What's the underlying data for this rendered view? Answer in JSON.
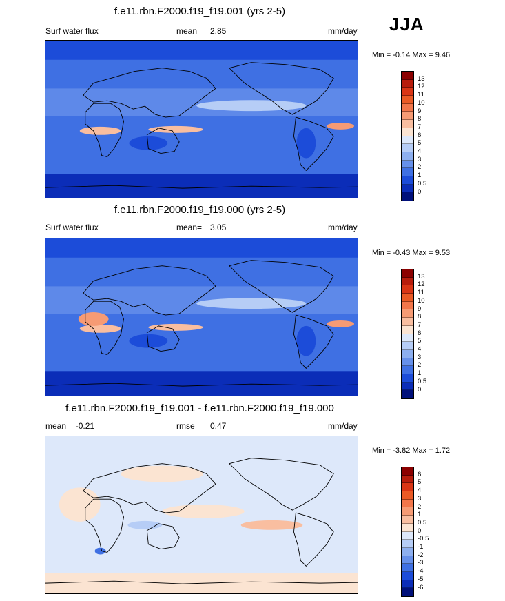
{
  "season": "JJA",
  "panels": [
    {
      "title": "f.e11.rbn.F2000.f19_f19.001 (yrs 2-5)",
      "left_label": "Surf water flux",
      "mid_label": "mean=",
      "mid_value": "2.85",
      "units": "mm/day",
      "minmax": "Min =  -0.14 Max =   9.46",
      "colorbar_ticks": [
        "13",
        "12",
        "11",
        "10",
        "9",
        "8",
        "7",
        "6",
        "5",
        "4",
        "3",
        "2",
        "1",
        "0.5",
        "0"
      ],
      "colorbar_colors": [
        "#8b0000",
        "#b71c0c",
        "#d93515",
        "#ea5a25",
        "#f2764a",
        "#f69b74",
        "#f9bea0",
        "#fbe4d2",
        "#dde8fa",
        "#b6cdf6",
        "#8dafef",
        "#6690ea",
        "#3f70e3",
        "#1c4cd9",
        "#0b2db8",
        "#00107a"
      ],
      "map_style": "precip"
    },
    {
      "title": "f.e11.rbn.F2000.f19_f19.000 (yrs 2-5)",
      "left_label": "Surf water flux",
      "mid_label": "mean=",
      "mid_value": "3.05",
      "units": "mm/day",
      "minmax": "Min =  -0.43 Max =   9.53",
      "colorbar_ticks": [
        "13",
        "12",
        "11",
        "10",
        "9",
        "8",
        "7",
        "6",
        "5",
        "4",
        "3",
        "2",
        "1",
        "0.5",
        "0"
      ],
      "colorbar_colors": [
        "#8b0000",
        "#b71c0c",
        "#d93515",
        "#ea5a25",
        "#f2764a",
        "#f69b74",
        "#f9bea0",
        "#fbe4d2",
        "#dde8fa",
        "#b6cdf6",
        "#8dafef",
        "#6690ea",
        "#3f70e3",
        "#1c4cd9",
        "#0b2db8",
        "#00107a"
      ],
      "map_style": "precip"
    },
    {
      "title": "f.e11.rbn.F2000.f19_f19.001 - f.e11.rbn.F2000.f19_f19.000",
      "left_label": "mean = -0.21",
      "mid_label": "rmse =",
      "mid_value": "0.47",
      "units": "mm/day",
      "minmax": "Min =  -3.82 Max =   1.72",
      "colorbar_ticks": [
        "6",
        "5",
        "4",
        "3",
        "2",
        "1",
        "0.5",
        "0",
        "-0.5",
        "-1",
        "-2",
        "-3",
        "-4",
        "-5",
        "-6"
      ],
      "colorbar_colors": [
        "#8b0000",
        "#b71c0c",
        "#d93515",
        "#ea5a25",
        "#f2764a",
        "#f69b74",
        "#f9bea0",
        "#fbe4d2",
        "#dde8fa",
        "#b6cdf6",
        "#8dafef",
        "#6690ea",
        "#3f70e3",
        "#1c4cd9",
        "#0b2db8",
        "#00107a"
      ],
      "map_style": "diff"
    }
  ]
}
